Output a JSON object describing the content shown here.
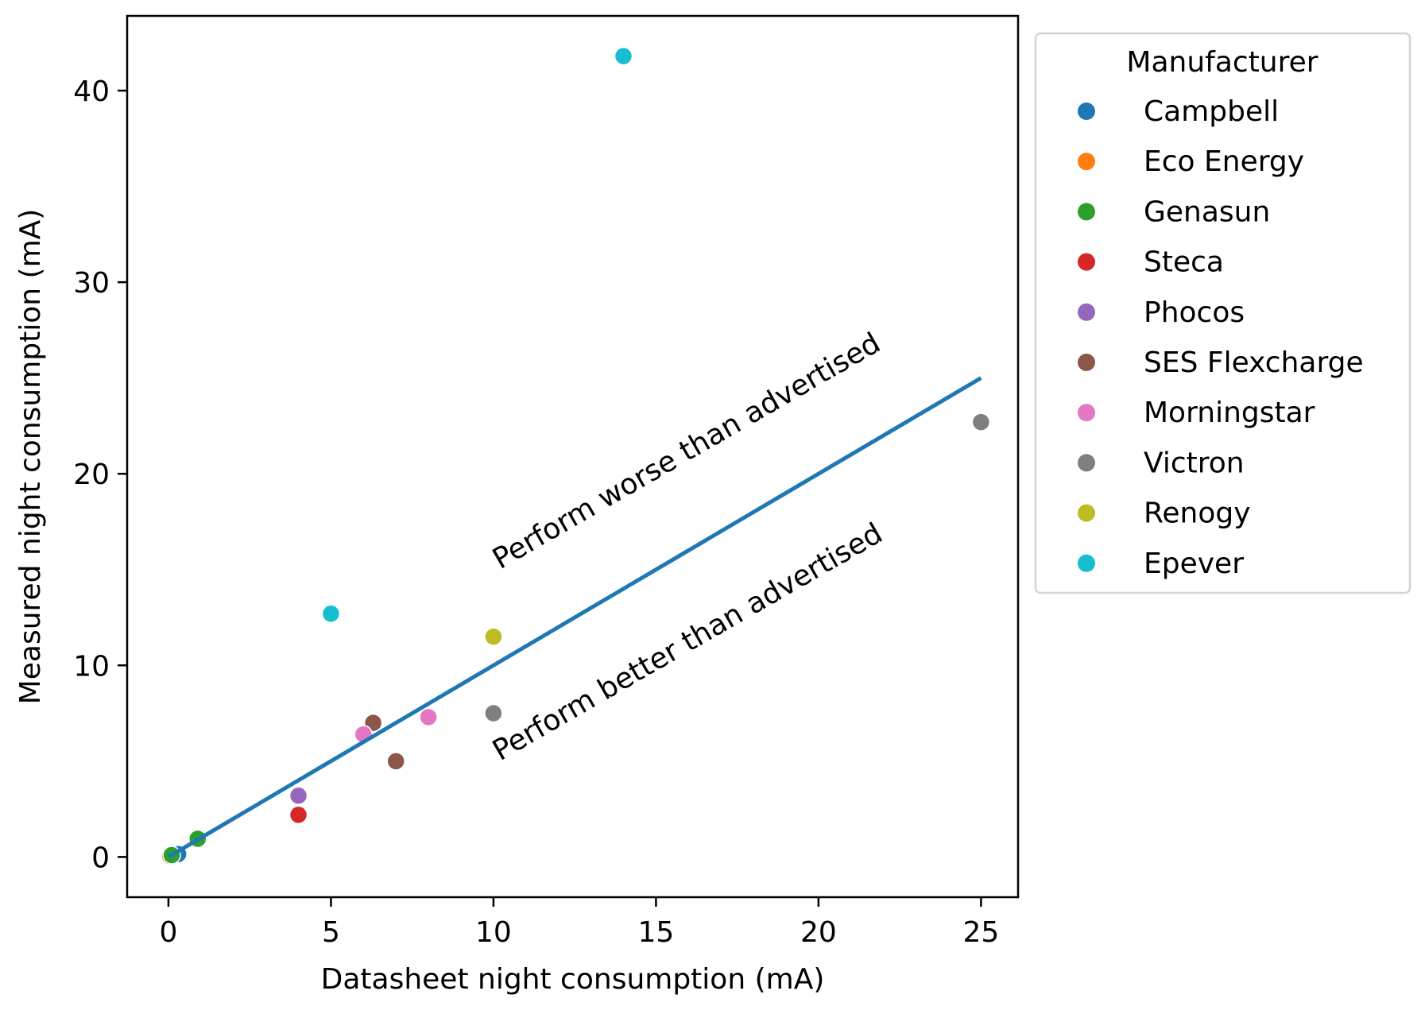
{
  "chart_data": {
    "type": "scatter",
    "title": "",
    "xlabel": "Datasheet night consumption (mA)",
    "ylabel": "Measured night consumption (mA)",
    "xlim": [
      -1.27,
      26.14
    ],
    "ylim": [
      -2.1,
      43.9
    ],
    "xticks": [
      0,
      5,
      10,
      15,
      20,
      25
    ],
    "yticks": [
      0,
      10,
      20,
      30,
      40
    ],
    "grid": false,
    "legend": {
      "title": "Manufacturer",
      "placement": "outside-right-top"
    },
    "series": [
      {
        "name": "Campbell",
        "color": "#1f77b4",
        "points": [
          {
            "x": 0.3,
            "y": 0.15
          }
        ]
      },
      {
        "name": "Eco Energy",
        "color": "#ff7f0e",
        "points": [
          {
            "x": 0.05,
            "y": 0.05
          }
        ]
      },
      {
        "name": "Genasun",
        "color": "#2ca02c",
        "points": [
          {
            "x": 0.1,
            "y": 0.1
          },
          {
            "x": 0.9,
            "y": 0.95
          }
        ]
      },
      {
        "name": "Steca",
        "color": "#d62728",
        "points": [
          {
            "x": 4.0,
            "y": 2.2
          }
        ]
      },
      {
        "name": "Phocos",
        "color": "#9467bd",
        "points": [
          {
            "x": 4.0,
            "y": 3.2
          }
        ]
      },
      {
        "name": "SES Flexcharge",
        "color": "#8c564b",
        "points": [
          {
            "x": 6.3,
            "y": 7.0
          },
          {
            "x": 7.0,
            "y": 5.0
          }
        ]
      },
      {
        "name": "Morningstar",
        "color": "#e377c2",
        "points": [
          {
            "x": 6.0,
            "y": 6.4
          },
          {
            "x": 8.0,
            "y": 7.3
          }
        ]
      },
      {
        "name": "Victron",
        "color": "#7f7f7f",
        "points": [
          {
            "x": 10.0,
            "y": 7.5
          },
          {
            "x": 25.0,
            "y": 22.7
          }
        ]
      },
      {
        "name": "Renogy",
        "color": "#bcbd22",
        "points": [
          {
            "x": 10.0,
            "y": 11.5
          }
        ]
      },
      {
        "name": "Epever",
        "color": "#17becf",
        "points": [
          {
            "x": 5.0,
            "y": 12.7
          },
          {
            "x": 14.0,
            "y": 41.8
          }
        ]
      }
    ],
    "reference_line": {
      "name": "y = x",
      "color": "#1f77b4",
      "x": [
        0,
        25
      ],
      "y": [
        0,
        25
      ]
    },
    "annotations": [
      {
        "text": "Perform worse than advertised",
        "x": 10.2,
        "y": 15.0,
        "rotation_deg": -30
      },
      {
        "text": "Perform better than advertised",
        "x": 10.2,
        "y": 5.0,
        "rotation_deg": -30
      }
    ]
  }
}
